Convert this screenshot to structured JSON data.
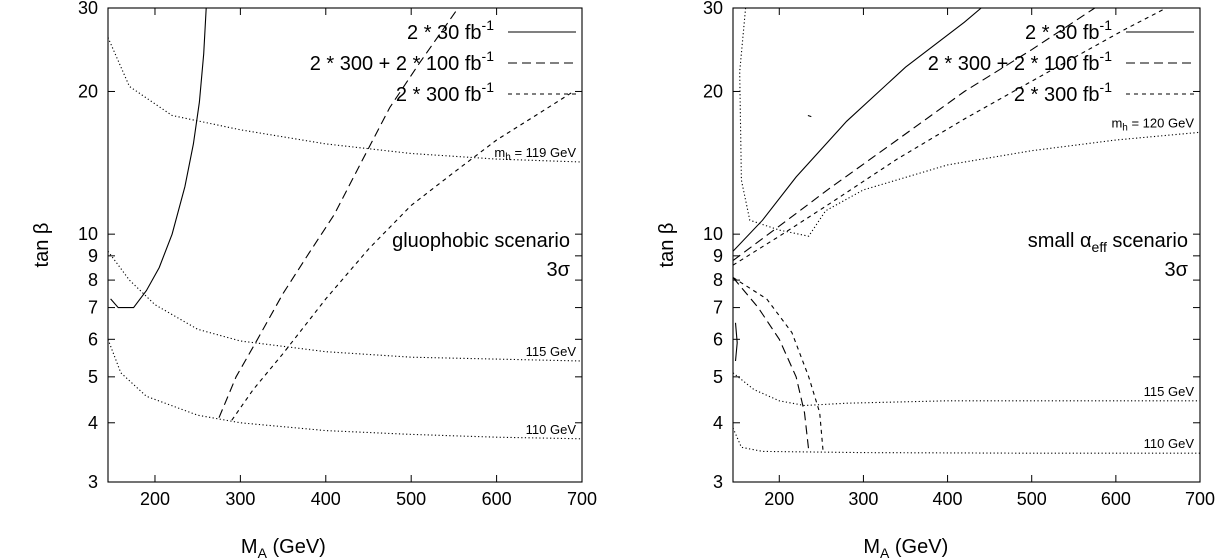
{
  "chart_data": [
    {
      "type": "line",
      "xlabel_main": "M",
      "xlabel_sub": "A",
      "xlabel_unit": "(GeV)",
      "ylabel": "tan β",
      "xlim": [
        145,
        700
      ],
      "ylim": [
        3,
        30
      ],
      "yscale": "log",
      "xticks": [
        200,
        300,
        400,
        500,
        600,
        700
      ],
      "yticks": [
        3,
        4,
        5,
        6,
        7,
        8,
        9,
        10,
        20,
        30
      ],
      "legend_position": "top-right",
      "annotation": {
        "line1": "gluophobic scenario",
        "line2": "3σ"
      },
      "series": [
        {
          "legend": {
            "base": "2 * 30 fb",
            "sup": "-1"
          },
          "style": "solid",
          "segments": [
            [
              [
                148,
                7.3
              ],
              [
                157,
                7.0
              ],
              [
                175,
                7.0
              ],
              [
                190,
                7.6
              ],
              [
                205,
                8.5
              ],
              [
                220,
                10.0
              ],
              [
                235,
                12.6
              ],
              [
                245,
                15.5
              ],
              [
                252,
                19
              ],
              [
                257,
                24
              ],
              [
                260,
                30
              ]
            ]
          ]
        },
        {
          "legend": {
            "base": "2 * 300 + 2 * 100 fb",
            "sup": "-1"
          },
          "style": "dashed",
          "segments": [
            [
              [
                275,
                4.1
              ],
              [
                295,
                5.0
              ],
              [
                320,
                6.0
              ],
              [
                350,
                7.5
              ],
              [
                380,
                9.1
              ],
              [
                410,
                11.0
              ],
              [
                440,
                14.0
              ],
              [
                475,
                18.5
              ],
              [
                510,
                23
              ],
              [
                555,
                30
              ]
            ]
          ]
        },
        {
          "legend": {
            "base": "2 * 300 fb",
            "sup": "-1"
          },
          "style": "short-dashed",
          "segments": [
            [
              [
                290,
                4.05
              ],
              [
                315,
                4.7
              ],
              [
                350,
                5.6
              ],
              [
                400,
                7.3
              ],
              [
                450,
                9.3
              ],
              [
                500,
                11.5
              ],
              [
                550,
                13.5
              ],
              [
                600,
                15.8
              ],
              [
                650,
                18
              ],
              [
                690,
                20
              ]
            ]
          ]
        }
      ],
      "mh_contours": [
        {
          "label_main": "m",
          "label_sub": "h",
          "label_rest": " = 119 GeV",
          "points": [
            [
              145,
              26
            ],
            [
              170,
              20.5
            ],
            [
              220,
              17.8
            ],
            [
              300,
              16.6
            ],
            [
              400,
              15.5
            ],
            [
              500,
              14.8
            ],
            [
              600,
              14.4
            ],
            [
              700,
              14.2
            ]
          ]
        },
        {
          "label": "115 GeV",
          "points": [
            [
              145,
              9.2
            ],
            [
              170,
              8.0
            ],
            [
              200,
              7.1
            ],
            [
              250,
              6.3
            ],
            [
              300,
              5.95
            ],
            [
              400,
              5.65
            ],
            [
              500,
              5.5
            ],
            [
              600,
              5.45
            ],
            [
              700,
              5.4
            ]
          ]
        },
        {
          "label": "110 GeV",
          "points": [
            [
              145,
              6.0
            ],
            [
              160,
              5.1
            ],
            [
              190,
              4.55
            ],
            [
              250,
              4.15
            ],
            [
              300,
              4.0
            ],
            [
              400,
              3.85
            ],
            [
              500,
              3.78
            ],
            [
              600,
              3.73
            ],
            [
              700,
              3.7
            ]
          ]
        }
      ]
    },
    {
      "type": "line",
      "xlabel_main": "M",
      "xlabel_sub": "A",
      "xlabel_unit": "(GeV)",
      "ylabel": "tan β",
      "xlim": [
        145,
        700
      ],
      "ylim": [
        3,
        30
      ],
      "yscale": "log",
      "xticks": [
        200,
        300,
        400,
        500,
        600,
        700
      ],
      "yticks": [
        3,
        4,
        5,
        6,
        7,
        8,
        9,
        10,
        20,
        30
      ],
      "legend_position": "top-right",
      "annotation": {
        "line1a": "small α",
        "line1sub": "eff",
        "line1b": " scenario",
        "line2": "3σ"
      },
      "series": [
        {
          "legend": {
            "base": "2 * 30 fb",
            "sup": "-1"
          },
          "style": "solid",
          "segments": [
            [
              [
                145,
                9.2
              ],
              [
                180,
                10.7
              ],
              [
                220,
                13.2
              ],
              [
                280,
                17.3
              ],
              [
                350,
                22.5
              ],
              [
                420,
                28
              ],
              [
                440,
                30
              ]
            ],
            [
              [
                148,
                6.5
              ],
              [
                150,
                5.9
              ],
              [
                148,
                5.4
              ]
            ],
            [
              [
                234,
                17.8
              ],
              [
                238,
                17.7
              ]
            ]
          ]
        },
        {
          "legend": {
            "base": "2 * 300 + 2 * 100 fb",
            "sup": "-1"
          },
          "style": "dashed",
          "segments": [
            [
              [
                145,
                8.8
              ],
              [
                200,
                10.4
              ],
              [
                260,
                12.5
              ],
              [
                340,
                15.8
              ],
              [
                420,
                20
              ],
              [
                500,
                24.5
              ],
              [
                575,
                30
              ]
            ],
            [
              [
                145,
                8.1
              ],
              [
                175,
                7.0
              ],
              [
                200,
                6.0
              ],
              [
                220,
                5.0
              ],
              [
                230,
                4.2
              ],
              [
                235,
                3.5
              ]
            ]
          ]
        },
        {
          "legend": {
            "base": "2 * 300 fb",
            "sup": "-1"
          },
          "style": "short-dashed",
          "segments": [
            [
              [
                145,
                8.6
              ],
              [
                200,
                9.9
              ],
              [
                260,
                11.6
              ],
              [
                340,
                14.4
              ],
              [
                420,
                17.5
              ],
              [
                520,
                22
              ],
              [
                610,
                27
              ],
              [
                660,
                30
              ]
            ],
            [
              [
                145,
                8.1
              ],
              [
                185,
                7.3
              ],
              [
                215,
                6.2
              ],
              [
                235,
                5.0
              ],
              [
                248,
                4.2
              ],
              [
                252,
                3.5
              ]
            ]
          ]
        }
      ],
      "mh_contours": [
        {
          "label_main": "m",
          "label_sub": "h",
          "label_rest": " = 120 GeV",
          "points": [
            [
              160,
              30
            ],
            [
              153,
              22
            ],
            [
              155,
              13
            ],
            [
              165,
              10.7
            ],
            [
              200,
              10.2
            ],
            [
              235,
              9.9
            ],
            [
              255,
              11.2
            ],
            [
              300,
              12.4
            ],
            [
              400,
              14
            ],
            [
              500,
              15
            ],
            [
              600,
              15.8
            ],
            [
              700,
              16.4
            ]
          ]
        },
        {
          "label": "115 GeV",
          "points": [
            [
              145,
              5.1
            ],
            [
              170,
              4.7
            ],
            [
              200,
              4.45
            ],
            [
              230,
              4.35
            ],
            [
              280,
              4.4
            ],
            [
              400,
              4.45
            ],
            [
              500,
              4.45
            ],
            [
              600,
              4.45
            ],
            [
              700,
              4.45
            ]
          ]
        },
        {
          "label": "110 GeV",
          "points": [
            [
              145,
              3.9
            ],
            [
              155,
              3.55
            ],
            [
              180,
              3.48
            ],
            [
              300,
              3.46
            ],
            [
              500,
              3.45
            ],
            [
              700,
              3.45
            ]
          ]
        }
      ]
    }
  ]
}
